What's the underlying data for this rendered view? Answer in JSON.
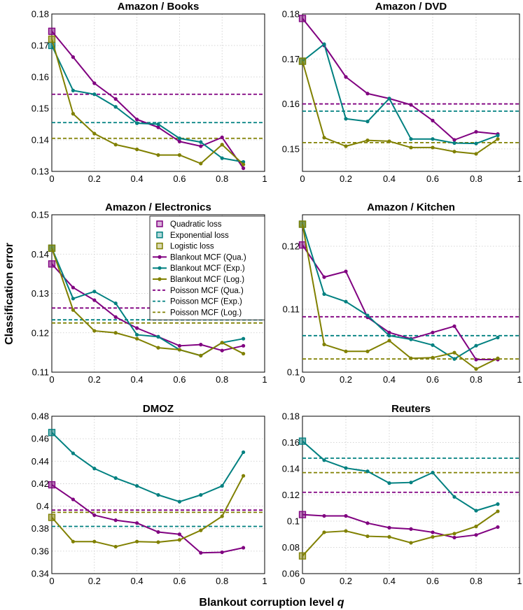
{
  "figure": {
    "ylabel": "Classification error",
    "xlabel_prefix": "Blankout corruption level ",
    "xlabel_var": "q"
  },
  "colors": {
    "qua": "#800080",
    "exp": "#008080",
    "log": "#808000"
  },
  "legend": [
    {
      "label": "Quadratic loss",
      "kind": "square",
      "color": "qua"
    },
    {
      "label": "Exponential loss",
      "kind": "square",
      "color": "exp"
    },
    {
      "label": "Logistic loss",
      "kind": "square",
      "color": "log"
    },
    {
      "label": "Blankout MCF (Qua.)",
      "kind": "line",
      "color": "qua"
    },
    {
      "label": "Blankout MCF (Exp.)",
      "kind": "line",
      "color": "exp"
    },
    {
      "label": "Blankout MCF (Log.)",
      "kind": "line",
      "color": "log"
    },
    {
      "label": "Poisson MCF (Qua.)",
      "kind": "dash",
      "color": "qua"
    },
    {
      "label": "Poisson MCF (Exp.)",
      "kind": "dash",
      "color": "exp"
    },
    {
      "label": "Poisson MCF (Log.)",
      "kind": "dash",
      "color": "log"
    }
  ],
  "chart_data": [
    {
      "type": "line",
      "title": "Amazon / Books",
      "xlabel": "Blankout corruption level q",
      "ylabel": "Classification error",
      "xlim": [
        0,
        1
      ],
      "ylim": [
        0.13,
        0.18
      ],
      "xticks": [
        "0",
        "0.2",
        "0.4",
        "0.6",
        "0.8",
        "1"
      ],
      "yticks": [
        "0.13",
        "0.14",
        "0.15",
        "0.16",
        "0.17",
        "0.18"
      ],
      "x": [
        0,
        0.1,
        0.2,
        0.3,
        0.4,
        0.5,
        0.6,
        0.7,
        0.8,
        0.9
      ],
      "series": [
        {
          "name": "Blankout MCF (Qua.)",
          "color": "qua",
          "values": [
            0.1745,
            0.1663,
            0.158,
            0.153,
            0.1465,
            0.144,
            0.1395,
            0.138,
            0.1408,
            0.131
          ]
        },
        {
          "name": "Blankout MCF (Exp.)",
          "color": "exp",
          "values": [
            0.17,
            0.1557,
            0.1545,
            0.1505,
            0.1453,
            0.145,
            0.1405,
            0.1393,
            0.1342,
            0.133
          ]
        },
        {
          "name": "Blankout MCF (Log.)",
          "color": "log",
          "values": [
            0.172,
            0.1483,
            0.142,
            0.1385,
            0.137,
            0.1352,
            0.1352,
            0.1325,
            0.1385,
            0.1322
          ]
        }
      ],
      "poisson": {
        "qua": 0.1545,
        "exp": 0.1455,
        "log": 0.1405
      }
    },
    {
      "type": "line",
      "title": "Amazon / DVD",
      "xlim": [
        0,
        1
      ],
      "ylim": [
        0.145,
        0.18
      ],
      "xticks": [
        "0",
        "0.2",
        "0.4",
        "0.6",
        "0.8",
        "1"
      ],
      "yticks": [
        "0.15",
        "0.16",
        "0.17",
        "0.18"
      ],
      "x": [
        0,
        0.1,
        0.2,
        0.3,
        0.4,
        0.5,
        0.6,
        0.7,
        0.8,
        0.9
      ],
      "series": [
        {
          "name": "Blankout MCF (Qua.)",
          "color": "qua",
          "values": [
            0.179,
            0.173,
            0.166,
            0.1623,
            0.1612,
            0.1598,
            0.1563,
            0.152,
            0.1538,
            0.1533
          ]
        },
        {
          "name": "Blankout MCF (Exp.)",
          "color": "exp",
          "values": [
            0.1695,
            0.1733,
            0.1567,
            0.1561,
            0.1612,
            0.1522,
            0.1522,
            0.1513,
            0.1512,
            0.153
          ]
        },
        {
          "name": "Blankout MCF (Log.)",
          "color": "log",
          "values": [
            0.1695,
            0.1525,
            0.1506,
            0.1519,
            0.1517,
            0.1503,
            0.1503,
            0.1494,
            0.1489,
            0.1522
          ]
        }
      ],
      "poisson": {
        "qua": 0.16,
        "exp": 0.1584,
        "log": 0.1514
      }
    },
    {
      "type": "line",
      "title": "Amazon / Electronics",
      "xlim": [
        0,
        1
      ],
      "ylim": [
        0.11,
        0.15
      ],
      "xticks": [
        "0",
        "0.2",
        "0.4",
        "0.6",
        "0.8",
        "1"
      ],
      "yticks": [
        "0.11",
        "0.12",
        "0.13",
        "0.14",
        "0.15"
      ],
      "x": [
        0,
        0.1,
        0.2,
        0.3,
        0.4,
        0.5,
        0.6,
        0.7,
        0.8,
        0.9
      ],
      "series": [
        {
          "name": "Blankout MCF (Qua.)",
          "color": "qua",
          "values": [
            0.1375,
            0.1315,
            0.1283,
            0.124,
            0.1212,
            0.119,
            0.1167,
            0.117,
            0.1155,
            0.1167
          ]
        },
        {
          "name": "Blankout MCF (Exp.)",
          "color": "exp",
          "values": [
            0.1415,
            0.1287,
            0.1305,
            0.1275,
            0.1195,
            0.119,
            0.1157,
            0.1142,
            0.1175,
            0.1185
          ]
        },
        {
          "name": "Blankout MCF (Log.)",
          "color": "log",
          "values": [
            0.1415,
            0.1258,
            0.1205,
            0.12,
            0.1185,
            0.1162,
            0.1157,
            0.1142,
            0.1175,
            0.1147
          ]
        }
      ],
      "poisson": {
        "qua": 0.1263,
        "exp": 0.1233,
        "log": 0.1225
      }
    },
    {
      "type": "line",
      "title": "Amazon / Kitchen",
      "xlim": [
        0,
        1
      ],
      "ylim": [
        0.1,
        0.125
      ],
      "xticks": [
        "0",
        "0.2",
        "0.4",
        "0.6",
        "0.8",
        "1"
      ],
      "yticks": [
        "0.1",
        "0.11",
        "0.12"
      ],
      "x": [
        0,
        0.1,
        0.2,
        0.3,
        0.4,
        0.5,
        0.6,
        0.7,
        0.8,
        0.9
      ],
      "series": [
        {
          "name": "Blankout MCF (Qua.)",
          "color": "qua",
          "values": [
            0.1202,
            0.1151,
            0.116,
            0.1087,
            0.1063,
            0.1053,
            0.1063,
            0.1073,
            0.102,
            0.102
          ]
        },
        {
          "name": "Blankout MCF (Exp.)",
          "color": "exp",
          "values": [
            0.1235,
            0.1124,
            0.1112,
            0.109,
            0.1058,
            0.1052,
            0.1043,
            0.1021,
            0.1042,
            0.1055
          ]
        },
        {
          "name": "Blankout MCF (Log.)",
          "color": "log",
          "values": [
            0.1235,
            0.1044,
            0.1033,
            0.1033,
            0.105,
            0.1022,
            0.1023,
            0.1031,
            0.1005,
            0.1022
          ]
        }
      ],
      "poisson": {
        "qua": 0.1088,
        "exp": 0.1058,
        "log": 0.1021
      }
    },
    {
      "type": "line",
      "title": "DMOZ",
      "xlim": [
        0,
        1
      ],
      "ylim": [
        0.34,
        0.48
      ],
      "xticks": [
        "0",
        "0.2",
        "0.4",
        "0.6",
        "0.8",
        "1"
      ],
      "yticks": [
        "0.34",
        "0.36",
        "0.38",
        "0.4",
        "0.42",
        "0.44",
        "0.46",
        "0.48"
      ],
      "x": [
        0,
        0.1,
        0.2,
        0.3,
        0.4,
        0.5,
        0.6,
        0.7,
        0.8,
        0.9
      ],
      "series": [
        {
          "name": "Blankout MCF (Qua.)",
          "color": "qua",
          "values": [
            0.419,
            0.406,
            0.392,
            0.3875,
            0.385,
            0.377,
            0.375,
            0.3585,
            0.359,
            0.363
          ]
        },
        {
          "name": "Blankout MCF (Exp.)",
          "color": "exp",
          "values": [
            0.4655,
            0.447,
            0.4335,
            0.425,
            0.418,
            0.41,
            0.404,
            0.41,
            0.418,
            0.448
          ]
        },
        {
          "name": "Blankout MCF (Log.)",
          "color": "log",
          "values": [
            0.39,
            0.3685,
            0.3685,
            0.364,
            0.3685,
            0.368,
            0.37,
            0.3785,
            0.391,
            0.427
          ]
        }
      ],
      "poisson": {
        "qua": 0.3965,
        "exp": 0.382,
        "log": 0.3945
      }
    },
    {
      "type": "line",
      "title": "Reuters",
      "xlim": [
        0,
        1
      ],
      "ylim": [
        0.06,
        0.18
      ],
      "xticks": [
        "0",
        "0.2",
        "0.4",
        "0.6",
        "0.8",
        "1"
      ],
      "yticks": [
        "0.06",
        "0.08",
        "0.1",
        "0.12",
        "0.14",
        "0.16",
        "0.18"
      ],
      "x": [
        0,
        0.1,
        0.2,
        0.3,
        0.4,
        0.5,
        0.6,
        0.7,
        0.8,
        0.9
      ],
      "series": [
        {
          "name": "Blankout MCF (Qua.)",
          "color": "qua",
          "values": [
            0.105,
            0.104,
            0.104,
            0.0985,
            0.095,
            0.094,
            0.0915,
            0.0875,
            0.0895,
            0.0955
          ]
        },
        {
          "name": "Blankout MCF (Exp.)",
          "color": "exp",
          "values": [
            0.161,
            0.1465,
            0.1405,
            0.138,
            0.129,
            0.1295,
            0.137,
            0.1185,
            0.108,
            0.113
          ]
        },
        {
          "name": "Blankout MCF (Log.)",
          "color": "log",
          "values": [
            0.0735,
            0.0915,
            0.0925,
            0.0885,
            0.088,
            0.0835,
            0.088,
            0.0905,
            0.096,
            0.1075
          ]
        }
      ],
      "poisson": {
        "qua": 0.122,
        "exp": 0.148,
        "log": 0.137
      }
    }
  ]
}
